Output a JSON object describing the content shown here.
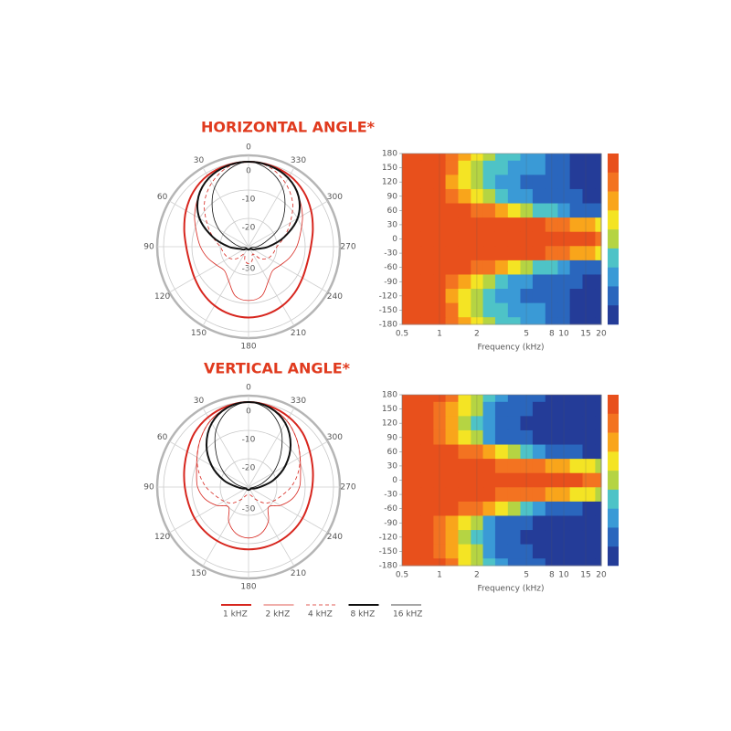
{
  "chart_data": [
    {
      "type": "polar",
      "title": "HORIZONTAL ANGLE*",
      "theta": [
        0,
        15,
        30,
        45,
        60,
        75,
        90,
        105,
        120,
        135,
        150,
        165,
        180,
        195,
        210,
        225,
        240,
        255,
        270,
        285,
        300,
        315,
        330,
        345
      ],
      "thetaticks": [
        0,
        30,
        60,
        90,
        120,
        150,
        180,
        210,
        240,
        270,
        300,
        330
      ],
      "rlim": [
        -30,
        0
      ],
      "rticks": [
        0,
        -10,
        -20,
        -30
      ],
      "series": [
        {
          "name": "1 kHZ",
          "color": "#d7261e",
          "width": 2,
          "dash": false,
          "values": [
            0,
            -0.3,
            -1,
            -2.5,
            -4.5,
            -6.5,
            -8,
            -8.5,
            -8,
            -7,
            -6,
            -5.3,
            -5,
            -5.3,
            -6,
            -7,
            -8,
            -8.5,
            -8,
            -6.5,
            -4.5,
            -2.5,
            -1,
            -0.3
          ]
        },
        {
          "name": "2 kHZ",
          "color": "#d7261e",
          "width": 0.8,
          "dash": false,
          "values": [
            0,
            -0.5,
            -2,
            -5,
            -8,
            -11,
            -13,
            -15,
            -17,
            -18,
            -16,
            -12,
            -11,
            -12,
            -16,
            -18,
            -17,
            -15,
            -13,
            -11,
            -8,
            -5,
            -2,
            -0.5
          ]
        },
        {
          "name": "4 kHZ",
          "color": "#d7261e",
          "width": 0.8,
          "dash": true,
          "values": [
            0,
            -1,
            -4,
            -8,
            -13,
            -17,
            -20,
            -21,
            -22,
            -24,
            -27,
            -25,
            -24,
            -25,
            -27,
            -24,
            -22,
            -21,
            -20,
            -17,
            -13,
            -8,
            -4,
            -1
          ]
        },
        {
          "name": "8 kHZ",
          "color": "#111111",
          "width": 2,
          "dash": false,
          "values": [
            0,
            -0.5,
            -2,
            -5,
            -10,
            -17,
            -23,
            -27,
            -28,
            -29,
            -29,
            -29,
            -29,
            -29,
            -29,
            -29,
            -28,
            -27,
            -23,
            -17,
            -10,
            -5,
            -2,
            -0.5
          ]
        },
        {
          "name": "16 kHZ",
          "color": "#111111",
          "width": 0.8,
          "dash": false,
          "values": [
            0,
            -2,
            -6,
            -12,
            -18,
            -24,
            -27,
            -29,
            -29,
            -29,
            -29,
            -29,
            -29,
            -29,
            -29,
            -29,
            -29,
            -29,
            -27,
            -24,
            -18,
            -12,
            -6,
            -2
          ]
        }
      ]
    },
    {
      "type": "heatmap",
      "xlabel": "Frequency (kHz)",
      "log_x": true,
      "x": [
        0.5,
        0.63,
        0.8,
        1,
        1.25,
        1.6,
        2,
        2.5,
        3.15,
        4,
        5,
        6.3,
        8,
        10,
        12.5,
        16,
        20
      ],
      "y": [
        180,
        150,
        120,
        90,
        60,
        30,
        0,
        -30,
        -60,
        -90,
        -120,
        -150,
        -180
      ],
      "xlim": [
        0.5,
        20
      ],
      "xticks": [
        0.5,
        1,
        2,
        5,
        8,
        10,
        15,
        20
      ],
      "ylim": [
        -180,
        180
      ],
      "yticks": [
        180,
        150,
        120,
        90,
        60,
        30,
        0,
        -30,
        -60,
        -90,
        -120,
        -150,
        -180
      ],
      "colors": [
        "#e8501c",
        "#f37321",
        "#f9a51b",
        "#f4e424",
        "#b5d443",
        "#4ec3c7",
        "#3a9ad6",
        "#2a66bd",
        "#243c98"
      ],
      "color_levels": [
        0,
        -3,
        -6,
        -9,
        -12,
        -15,
        -18,
        -21,
        -24
      ],
      "values": [
        [
          0,
          0,
          -1,
          -2,
          -4,
          -8,
          -11,
          -14,
          -16,
          -17,
          -18,
          -20,
          -22,
          -23,
          -24,
          -24,
          -24
        ],
        [
          0,
          0,
          -1,
          -2,
          -5,
          -9,
          -12,
          -15,
          -17,
          -18,
          -19,
          -20,
          -22,
          -23,
          -24,
          -24,
          -24
        ],
        [
          0,
          0,
          -1,
          -2,
          -6,
          -10,
          -14,
          -17,
          -19,
          -20,
          -21,
          -22,
          -23,
          -23,
          -24,
          -24,
          -24
        ],
        [
          0,
          0,
          -1,
          -2,
          -4,
          -7,
          -10,
          -13,
          -16,
          -18,
          -20,
          -21,
          -22,
          -23,
          -23,
          -24,
          -24
        ],
        [
          0,
          0,
          0,
          -1,
          -1,
          -2,
          -3,
          -5,
          -7,
          -9,
          -12,
          -15,
          -17,
          -19,
          -21,
          -22,
          -23
        ],
        [
          0,
          0,
          0,
          0,
          0,
          0,
          0,
          0,
          -1,
          -1,
          -2,
          -2,
          -3,
          -4,
          -6,
          -8,
          -10
        ],
        [
          0,
          0,
          0,
          0,
          0,
          0,
          0,
          0,
          0,
          0,
          0,
          0,
          0,
          0,
          -1,
          -2,
          -3
        ],
        [
          0,
          0,
          0,
          0,
          0,
          0,
          0,
          0,
          -1,
          -1,
          -2,
          -2,
          -3,
          -4,
          -6,
          -8,
          -10
        ],
        [
          0,
          0,
          0,
          -1,
          -1,
          -2,
          -3,
          -5,
          -7,
          -9,
          -12,
          -15,
          -17,
          -19,
          -21,
          -22,
          -23
        ],
        [
          0,
          0,
          -1,
          -2,
          -4,
          -7,
          -10,
          -13,
          -16,
          -18,
          -20,
          -21,
          -22,
          -23,
          -23,
          -24,
          -24
        ],
        [
          0,
          0,
          -1,
          -2,
          -6,
          -10,
          -14,
          -17,
          -19,
          -20,
          -21,
          -22,
          -23,
          -23,
          -24,
          -24,
          -24
        ],
        [
          0,
          0,
          -1,
          -2,
          -5,
          -9,
          -12,
          -15,
          -17,
          -18,
          -19,
          -20,
          -22,
          -23,
          -24,
          -24,
          -24
        ],
        [
          0,
          0,
          -1,
          -2,
          -4,
          -8,
          -11,
          -14,
          -16,
          -17,
          -18,
          -20,
          -22,
          -23,
          -24,
          -24,
          -24
        ]
      ]
    },
    {
      "type": "polar",
      "title": "VERTICAL ANGLE*",
      "theta": [
        0,
        15,
        30,
        45,
        60,
        75,
        90,
        105,
        120,
        135,
        150,
        165,
        180,
        195,
        210,
        225,
        240,
        255,
        270,
        285,
        300,
        315,
        330,
        345
      ],
      "thetaticks": [
        0,
        30,
        60,
        90,
        120,
        150,
        180,
        210,
        240,
        270,
        300,
        330
      ],
      "rlim": [
        -30,
        0
      ],
      "rticks": [
        0,
        -10,
        -20,
        -30
      ],
      "series": [
        {
          "color": "#d7261e",
          "width": 2,
          "dash": false,
          "values": [
            0,
            -0.5,
            -1.5,
            -3,
            -5,
            -6.5,
            -7.5,
            -8,
            -8,
            -8,
            -8,
            -8,
            -8,
            -8,
            -8,
            -8,
            -8,
            -8,
            -7.5,
            -6.5,
            -5,
            -3,
            -1.5,
            -0.5
          ]
        },
        {
          "color": "#d7261e",
          "width": 0.8,
          "dash": false,
          "values": [
            0,
            -1,
            -3,
            -6,
            -9,
            -11,
            -12,
            -14,
            -17,
            -20,
            -16,
            -13,
            -12,
            -13,
            -16,
            -20,
            -17,
            -14,
            -12,
            -11,
            -9,
            -6,
            -3,
            -1
          ]
        },
        {
          "color": "#d7261e",
          "width": 0.8,
          "dash": true,
          "values": [
            0,
            -1,
            -3,
            -6,
            -9,
            -12,
            -15,
            -18,
            -20,
            -22,
            -25,
            -27,
            -27,
            -27,
            -25,
            -22,
            -20,
            -18,
            -15,
            -12,
            -9,
            -6,
            -3,
            -1
          ]
        },
        {
          "color": "#111111",
          "width": 2,
          "dash": false,
          "values": [
            0,
            -1,
            -4,
            -9,
            -15,
            -21,
            -26,
            -28,
            -29,
            -29,
            -29,
            -29,
            -29,
            -29,
            -29,
            -29,
            -29,
            -28,
            -26,
            -21,
            -15,
            -9,
            -4,
            -1
          ]
        },
        {
          "color": "#111111",
          "width": 0.8,
          "dash": false,
          "values": [
            0,
            -2,
            -7,
            -14,
            -20,
            -25,
            -28,
            -29,
            -29,
            -29,
            -29,
            -29,
            -29,
            -29,
            -29,
            -29,
            -29,
            -29,
            -28,
            -25,
            -20,
            -14,
            -7,
            -2
          ]
        }
      ]
    },
    {
      "type": "heatmap",
      "xlabel": "Frequency (kHz)",
      "log_x": true,
      "x": [
        0.5,
        0.63,
        0.8,
        1,
        1.25,
        1.6,
        2,
        2.5,
        3.15,
        4,
        5,
        6.3,
        8,
        10,
        12.5,
        16,
        20
      ],
      "y": [
        180,
        150,
        120,
        90,
        60,
        30,
        0,
        -30,
        -60,
        -90,
        -120,
        -150,
        -180
      ],
      "xlim": [
        0.5,
        20
      ],
      "xticks": [
        0.5,
        1,
        2,
        5,
        8,
        10,
        15,
        20
      ],
      "ylim": [
        -180,
        180
      ],
      "yticks": [
        180,
        150,
        120,
        90,
        60,
        30,
        0,
        -30,
        -60,
        -90,
        -120,
        -150,
        -180
      ],
      "colors": [
        "#e8501c",
        "#f37321",
        "#f9a51b",
        "#f4e424",
        "#b5d443",
        "#4ec3c7",
        "#3a9ad6",
        "#2a66bd",
        "#243c98"
      ],
      "color_levels": [
        0,
        -3,
        -6,
        -9,
        -12,
        -15,
        -18,
        -21,
        -24
      ],
      "values": [
        [
          0,
          0,
          -1,
          -2,
          -5,
          -9,
          -13,
          -17,
          -20,
          -21,
          -22,
          -23,
          -24,
          -24,
          -24,
          -24,
          -24
        ],
        [
          0,
          0,
          -1,
          -3,
          -6,
          -10,
          -14,
          -18,
          -21,
          -22,
          -23,
          -24,
          -24,
          -24,
          -24,
          -24,
          -24
        ],
        [
          0,
          0,
          -1,
          -3,
          -7,
          -12,
          -16,
          -20,
          -22,
          -23,
          -24,
          -24,
          -24,
          -24,
          -24,
          -24,
          -24
        ],
        [
          0,
          0,
          -1,
          -3,
          -6,
          -10,
          -14,
          -18,
          -21,
          -22,
          -23,
          -24,
          -24,
          -24,
          -24,
          -24,
          -24
        ],
        [
          0,
          0,
          0,
          -1,
          -2,
          -3,
          -5,
          -8,
          -11,
          -14,
          -17,
          -19,
          -21,
          -22,
          -23,
          -24,
          -24
        ],
        [
          0,
          0,
          0,
          0,
          0,
          0,
          -1,
          -2,
          -3,
          -3,
          -4,
          -5,
          -6,
          -7,
          -9,
          -11,
          -13
        ],
        [
          0,
          0,
          0,
          0,
          0,
          0,
          0,
          0,
          0,
          0,
          0,
          0,
          0,
          -1,
          -2,
          -3,
          -4
        ],
        [
          0,
          0,
          0,
          0,
          0,
          0,
          -1,
          -2,
          -3,
          -3,
          -4,
          -5,
          -6,
          -7,
          -9,
          -11,
          -13
        ],
        [
          0,
          0,
          0,
          -1,
          -2,
          -3,
          -5,
          -8,
          -11,
          -14,
          -17,
          -19,
          -21,
          -22,
          -23,
          -24,
          -24
        ],
        [
          0,
          0,
          -1,
          -3,
          -6,
          -10,
          -14,
          -18,
          -21,
          -22,
          -23,
          -24,
          -24,
          -24,
          -24,
          -24,
          -24
        ],
        [
          0,
          0,
          -1,
          -3,
          -7,
          -12,
          -16,
          -20,
          -22,
          -23,
          -24,
          -24,
          -24,
          -24,
          -24,
          -24,
          -24
        ],
        [
          0,
          0,
          -1,
          -3,
          -6,
          -10,
          -14,
          -18,
          -21,
          -22,
          -23,
          -24,
          -24,
          -24,
          -24,
          -24,
          -24
        ],
        [
          0,
          0,
          -1,
          -2,
          -5,
          -9,
          -13,
          -17,
          -20,
          -21,
          -22,
          -23,
          -24,
          -24,
          -24,
          -24,
          -24
        ]
      ]
    }
  ]
}
